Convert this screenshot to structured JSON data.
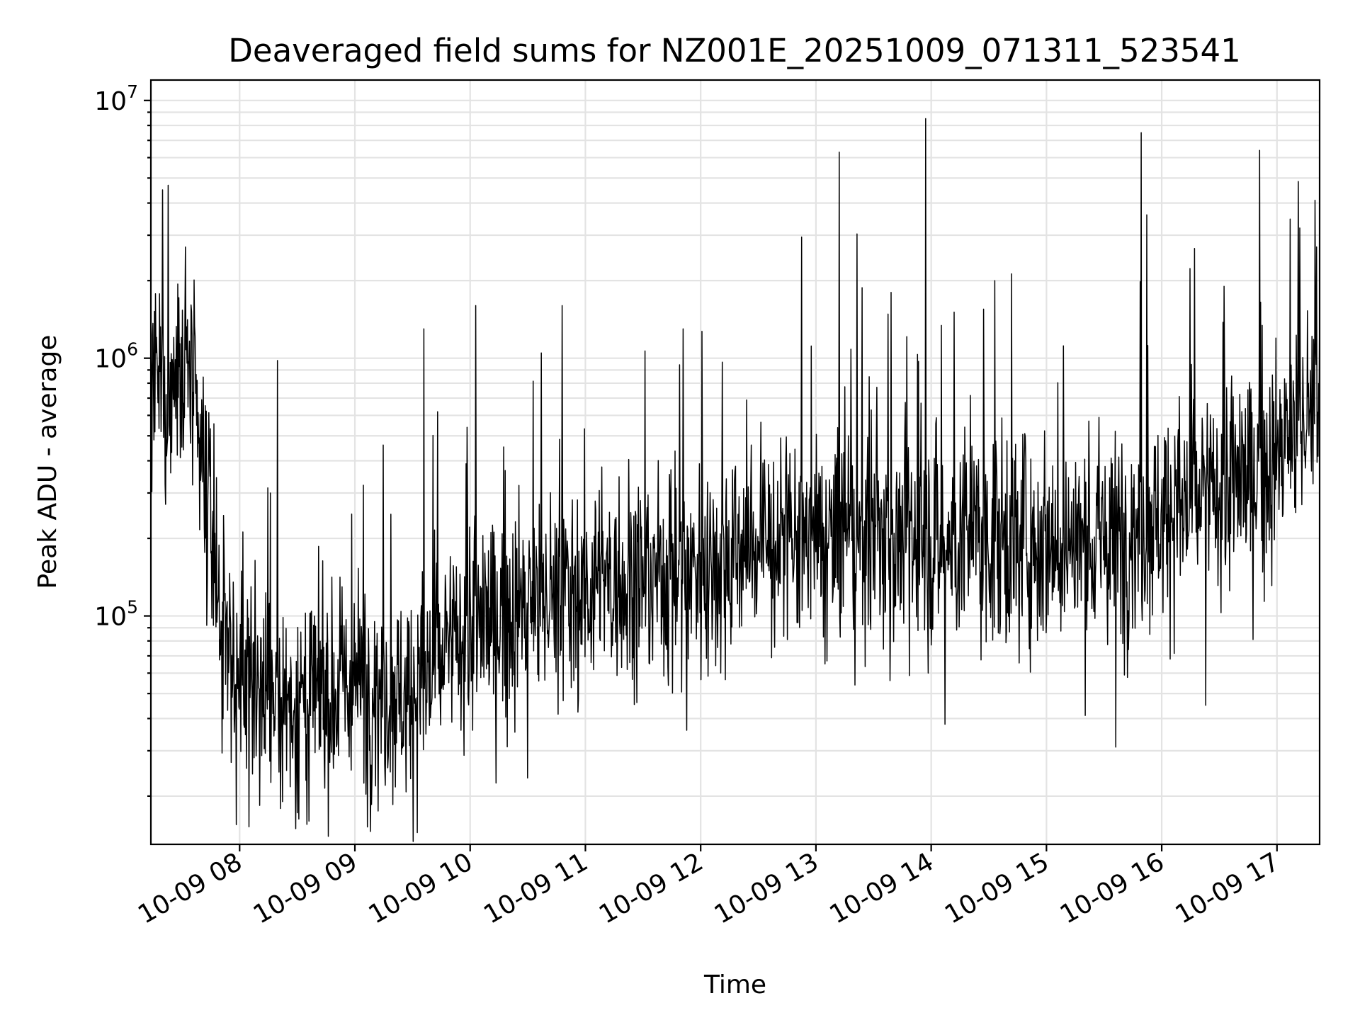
{
  "chart_data": {
    "type": "line",
    "title": "Deaveraged field sums for NZ001E_20251009_071311_523541",
    "xlabel": "Time",
    "ylabel": "Peak ADU - average",
    "yscale": "log",
    "ylim": [
      13000,
      12000000
    ],
    "xlim_hours": [
      7.23,
      17.37
    ],
    "grid": true,
    "x_ticks": [
      {
        "hour": 8,
        "label": "10-09 08"
      },
      {
        "hour": 9,
        "label": "10-09 09"
      },
      {
        "hour": 10,
        "label": "10-09 10"
      },
      {
        "hour": 11,
        "label": "10-09 11"
      },
      {
        "hour": 12,
        "label": "10-09 12"
      },
      {
        "hour": 13,
        "label": "10-09 13"
      },
      {
        "hour": 14,
        "label": "10-09 14"
      },
      {
        "hour": 15,
        "label": "10-09 15"
      },
      {
        "hour": 16,
        "label": "10-09 16"
      },
      {
        "hour": 17,
        "label": "10-09 17"
      }
    ],
    "y_ticks": [
      {
        "value": 100000,
        "base": "10",
        "exp": "5"
      },
      {
        "value": 1000000,
        "base": "10",
        "exp": "6"
      },
      {
        "value": 10000000,
        "base": "10",
        "exp": "7"
      }
    ],
    "series": [
      {
        "name": "Peak ADU - average",
        "color": "#000000",
        "trend": [
          {
            "hour": 7.23,
            "value": 700000
          },
          {
            "hour": 7.4,
            "value": 750000
          },
          {
            "hour": 7.55,
            "value": 900000
          },
          {
            "hour": 7.7,
            "value": 300000
          },
          {
            "hour": 7.85,
            "value": 90000
          },
          {
            "hour": 8.0,
            "value": 55000
          },
          {
            "hour": 8.5,
            "value": 45000
          },
          {
            "hour": 9.0,
            "value": 55000
          },
          {
            "hour": 9.5,
            "value": 50000
          },
          {
            "hour": 10.0,
            "value": 90000
          },
          {
            "hour": 10.5,
            "value": 110000
          },
          {
            "hour": 11.0,
            "value": 130000
          },
          {
            "hour": 11.5,
            "value": 140000
          },
          {
            "hour": 12.0,
            "value": 160000
          },
          {
            "hour": 12.5,
            "value": 190000
          },
          {
            "hour": 13.0,
            "value": 190000
          },
          {
            "hour": 13.5,
            "value": 200000
          },
          {
            "hour": 14.0,
            "value": 190000
          },
          {
            "hour": 14.5,
            "value": 200000
          },
          {
            "hour": 15.0,
            "value": 200000
          },
          {
            "hour": 15.5,
            "value": 190000
          },
          {
            "hour": 16.0,
            "value": 250000
          },
          {
            "hour": 16.5,
            "value": 300000
          },
          {
            "hour": 17.0,
            "value": 400000
          },
          {
            "hour": 17.37,
            "value": 700000
          }
        ],
        "spikes": [
          {
            "hour": 7.33,
            "value": 4500000
          },
          {
            "hour": 7.53,
            "value": 2700000
          },
          {
            "hour": 8.33,
            "value": 980000
          },
          {
            "hour": 9.6,
            "value": 1300000
          },
          {
            "hour": 10.05,
            "value": 1600000
          },
          {
            "hour": 10.8,
            "value": 1600000
          },
          {
            "hour": 11.85,
            "value": 1300000
          },
          {
            "hour": 13.2,
            "value": 6300000
          },
          {
            "hour": 13.65,
            "value": 1800000
          },
          {
            "hour": 13.95,
            "value": 8500000
          },
          {
            "hour": 14.55,
            "value": 2000000
          },
          {
            "hour": 15.82,
            "value": 7500000
          },
          {
            "hour": 15.87,
            "value": 3600000
          },
          {
            "hour": 16.85,
            "value": 6400000
          },
          {
            "hour": 17.2,
            "value": 3200000
          },
          {
            "hour": 17.33,
            "value": 4100000
          }
        ],
        "dips": [
          {
            "hour": 7.97,
            "value": 15500
          },
          {
            "hour": 8.08,
            "value": 15200
          },
          {
            "hour": 8.6,
            "value": 16000
          },
          {
            "hour": 9.2,
            "value": 17500
          },
          {
            "hour": 10.5,
            "value": 23500
          },
          {
            "hour": 11.88,
            "value": 36000
          },
          {
            "hour": 14.12,
            "value": 38000
          },
          {
            "hour": 15.6,
            "value": 31000
          },
          {
            "hour": 16.38,
            "value": 45000
          }
        ]
      }
    ]
  }
}
